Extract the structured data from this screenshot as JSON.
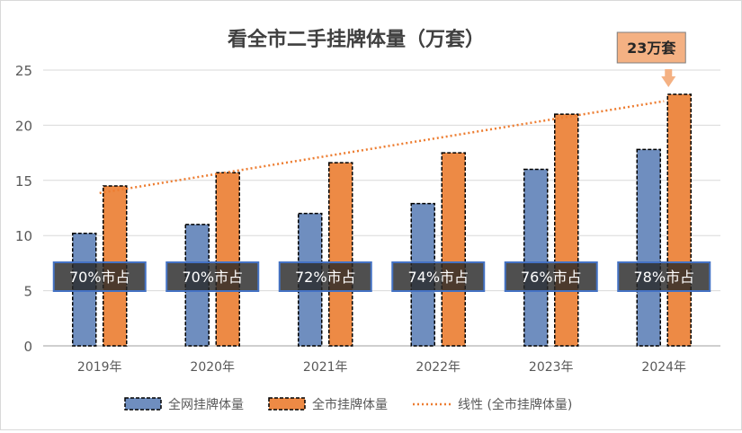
{
  "chart_data": {
    "type": "bar",
    "title": "看全市二手挂牌体量（万套）",
    "categories": [
      "2019年",
      "2020年",
      "2021年",
      "2022年",
      "2023年",
      "2024年"
    ],
    "series": [
      {
        "name": "全网挂牌体量",
        "values": [
          10.2,
          11.0,
          12.0,
          12.9,
          16.0,
          17.8
        ],
        "color": "#6f8ebf"
      },
      {
        "name": "全市挂牌体量",
        "values": [
          14.5,
          15.7,
          16.6,
          17.5,
          21.0,
          22.8
        ],
        "color": "#ed8a45"
      }
    ],
    "trendline": {
      "name": "线性 (全市挂牌体量)",
      "type": "linear",
      "of_series": "全市挂牌体量",
      "color": "#ed7d31"
    },
    "share_labels": [
      "70%市占",
      "70%市占",
      "72%市占",
      "74%市占",
      "76%市占",
      "78%市占"
    ],
    "callout": {
      "text": "23万套",
      "category": "2024年",
      "fill": "#f4b183"
    },
    "ylim": [
      0,
      25
    ],
    "yticks": [
      0,
      5,
      10,
      15,
      20,
      25
    ],
    "grid": true,
    "legend": "bottom",
    "xlabel": "",
    "ylabel": ""
  }
}
